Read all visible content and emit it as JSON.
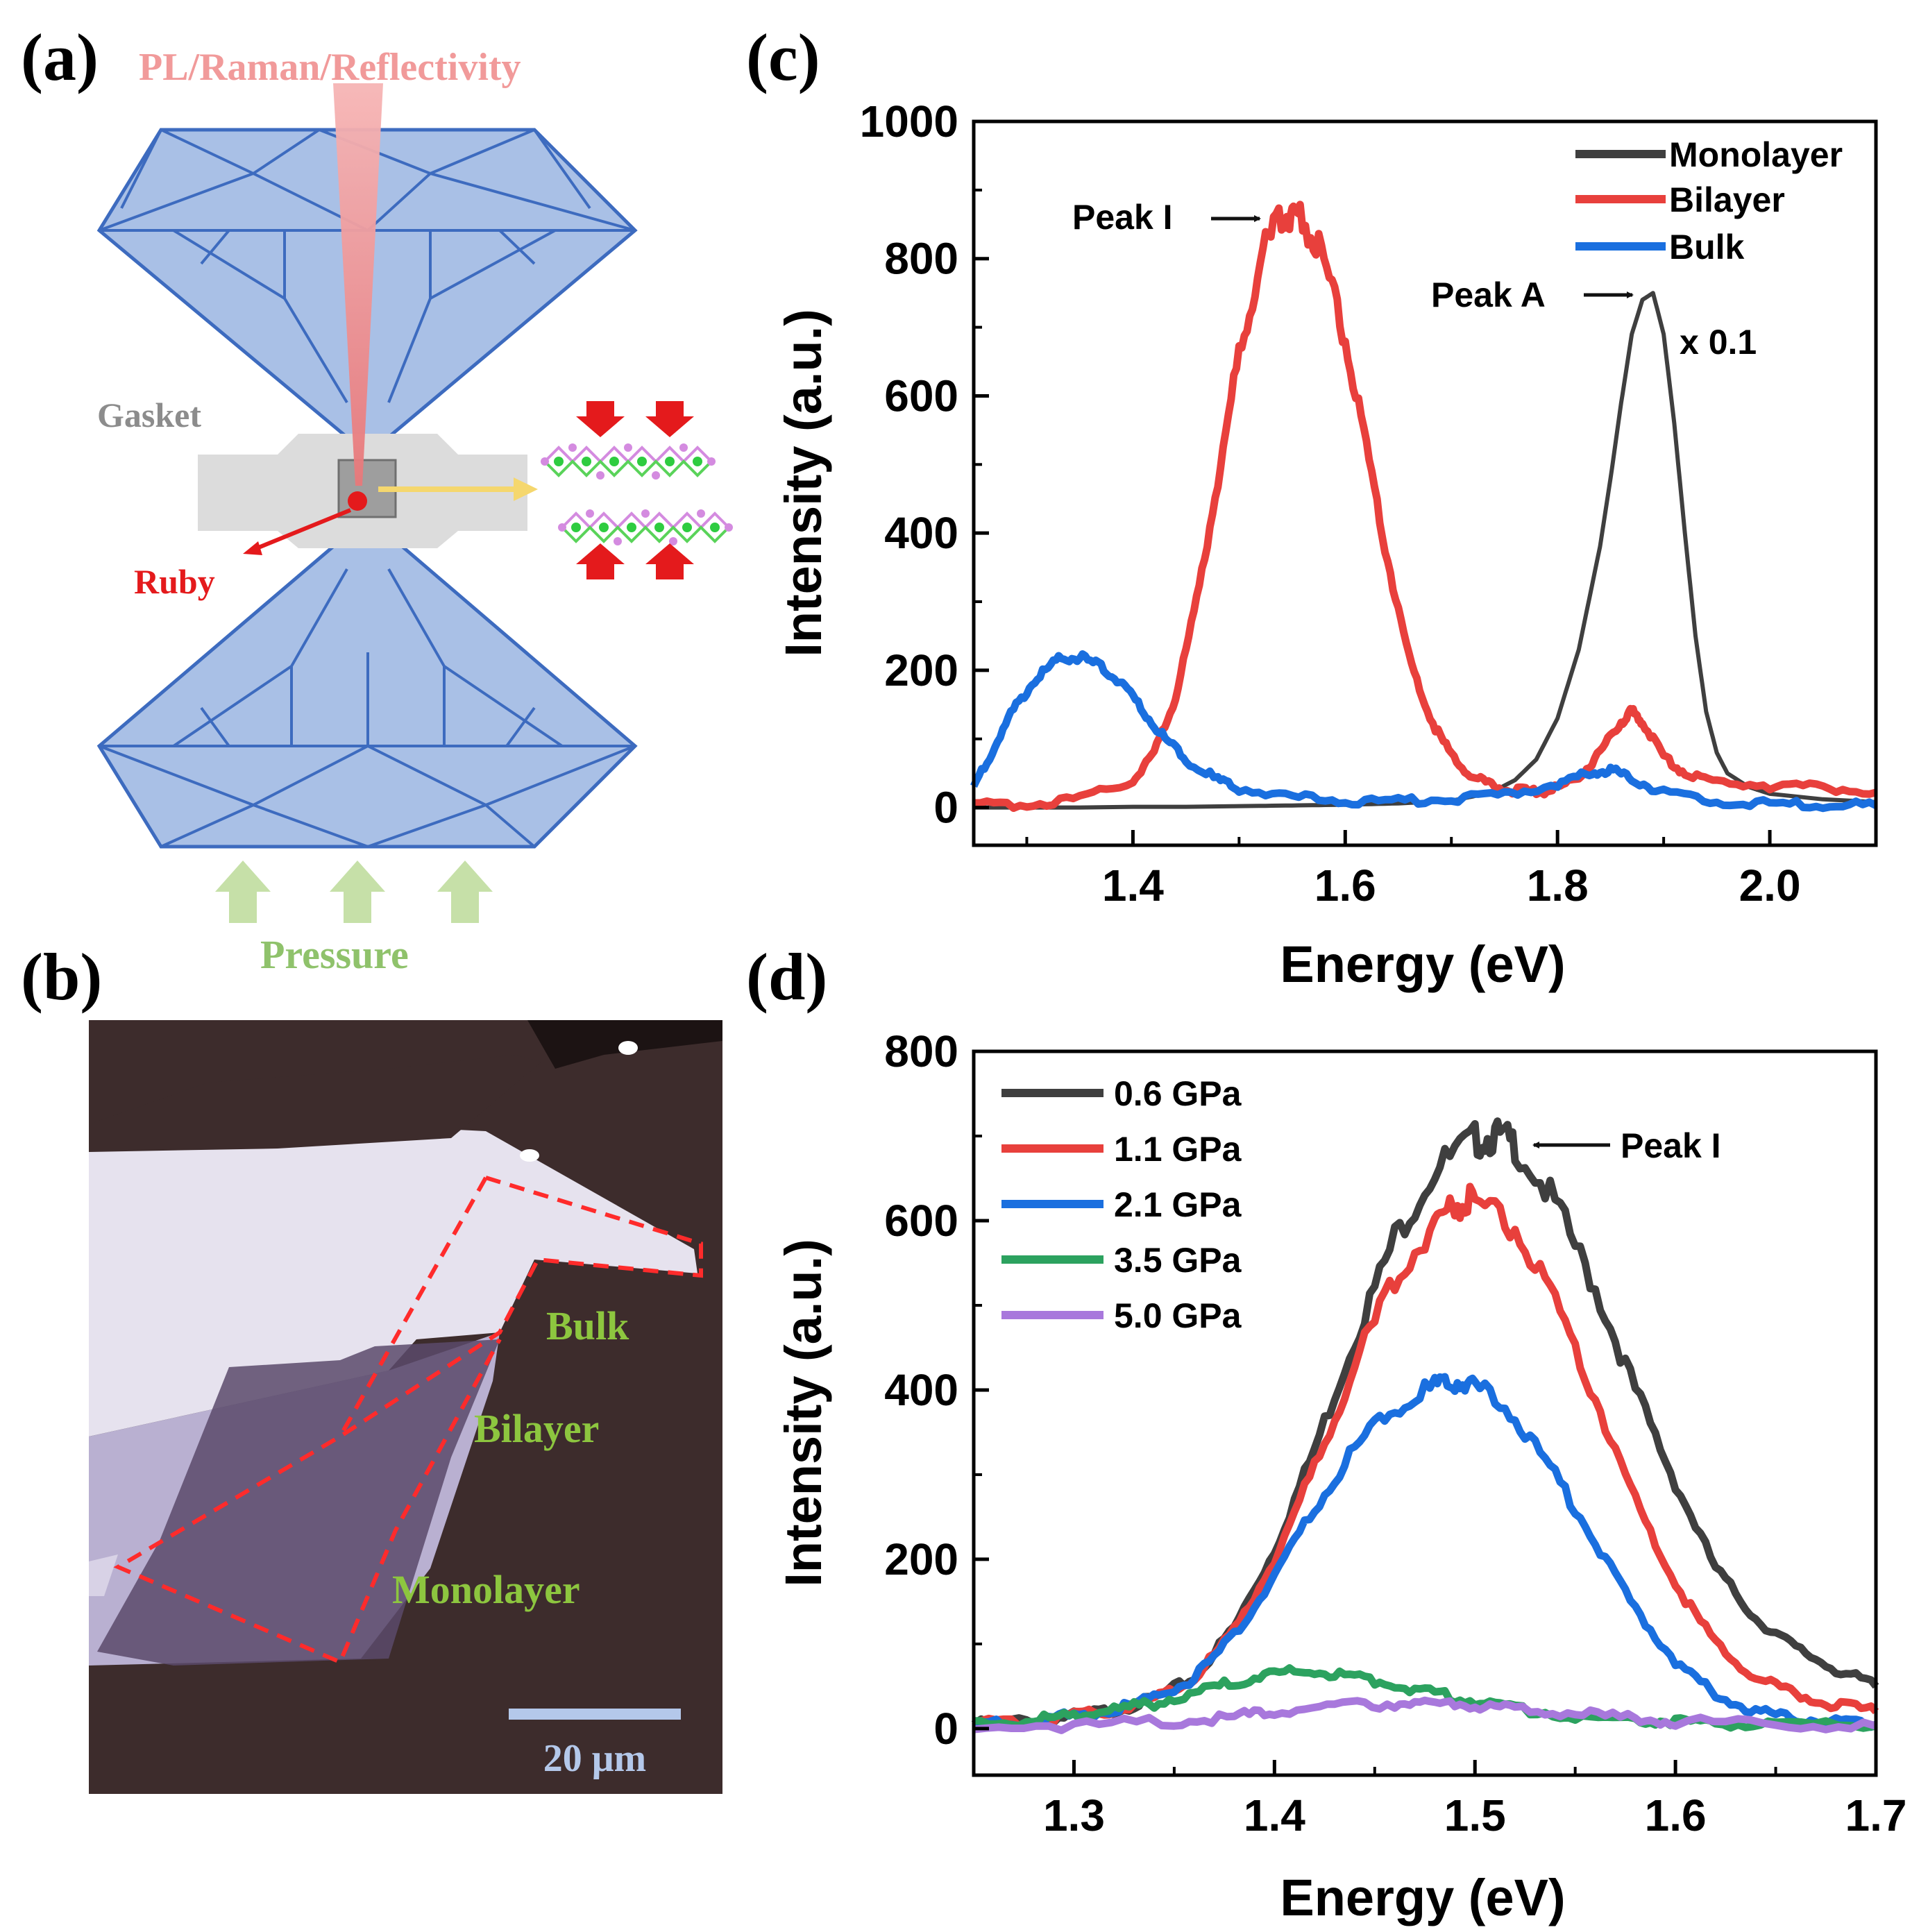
{
  "panels": {
    "a": "(a)",
    "b": "(b)",
    "c": "(c)",
    "d": "(d)"
  },
  "schematic": {
    "beam_label": "PL/Raman/Reflectivity",
    "gasket_label": "Gasket",
    "ruby_label": "Ruby",
    "pressure_label": "Pressure",
    "colors": {
      "diamond_fill": "#a9c0e6",
      "diamond_stroke": "#3d6bbf",
      "beam": "#f2a3a3",
      "gasket": "#d9d9d9",
      "ruby": "#e41a1c",
      "sample_arrow": "#f5d76e",
      "pressure_arrow": "#c6e0a8",
      "pressure_text": "#8fc26b"
    }
  },
  "micrograph": {
    "labels": {
      "bulk": "Bulk",
      "bilayer": "Bilayer",
      "monolayer": "Monolayer"
    },
    "scale_bar_label": "20 μm",
    "colors": {
      "substrate": "#3d2c2c",
      "label": "#8dc63f",
      "outline": "#ff2b2b",
      "scale_bar": "#b4c8ea"
    }
  },
  "chart_data": [
    {
      "panel": "c",
      "type": "line",
      "xlabel": "Energy (eV)",
      "ylabel": "Intensity (a.u.)",
      "xlim": [
        1.25,
        2.1
      ],
      "ylim": [
        -55,
        1000
      ],
      "xticks": [
        1.4,
        1.6,
        1.8,
        2.0
      ],
      "xtick_labels": [
        "1.4",
        "1.6",
        "1.8",
        "2.0"
      ],
      "yticks": [
        0,
        200,
        400,
        600,
        800,
        1000
      ],
      "ytick_labels": [
        "0",
        "200",
        "400",
        "600",
        "800",
        "1000"
      ],
      "legend_position": "top-right",
      "series": [
        {
          "name": "Monolayer",
          "color": "#3f3f3f",
          "x": [
            1.25,
            1.3,
            1.35,
            1.4,
            1.45,
            1.5,
            1.55,
            1.6,
            1.65,
            1.7,
            1.72,
            1.74,
            1.76,
            1.78,
            1.8,
            1.82,
            1.84,
            1.85,
            1.86,
            1.87,
            1.88,
            1.89,
            1.9,
            1.91,
            1.92,
            1.93,
            1.94,
            1.95,
            1.96,
            1.98,
            2.0,
            2.05,
            2.1
          ],
          "y": [
            0,
            0,
            0,
            1,
            1,
            2,
            3,
            4,
            6,
            10,
            16,
            24,
            40,
            70,
            130,
            230,
            380,
            480,
            590,
            690,
            740,
            750,
            690,
            560,
            400,
            250,
            140,
            80,
            50,
            30,
            20,
            12,
            8
          ]
        },
        {
          "name": "Bilayer",
          "color": "#e8403c",
          "x": [
            1.25,
            1.3,
            1.35,
            1.4,
            1.42,
            1.44,
            1.46,
            1.48,
            1.5,
            1.52,
            1.54,
            1.55,
            1.56,
            1.58,
            1.6,
            1.62,
            1.64,
            1.66,
            1.68,
            1.7,
            1.72,
            1.74,
            1.76,
            1.78,
            1.8,
            1.82,
            1.84,
            1.86,
            1.87,
            1.88,
            1.9,
            1.92,
            1.95,
            2.0,
            2.05,
            2.1
          ],
          "y": [
            3,
            5,
            12,
            40,
            80,
            160,
            300,
            480,
            660,
            800,
            862,
            870,
            860,
            800,
            680,
            520,
            360,
            220,
            130,
            75,
            45,
            30,
            25,
            22,
            28,
            45,
            80,
            125,
            140,
            125,
            75,
            50,
            38,
            32,
            30,
            22
          ]
        },
        {
          "name": "Bulk",
          "color": "#1a6fdf",
          "x": [
            1.25,
            1.27,
            1.29,
            1.31,
            1.33,
            1.35,
            1.37,
            1.39,
            1.41,
            1.43,
            1.45,
            1.48,
            1.5,
            1.55,
            1.6,
            1.65,
            1.7,
            1.75,
            1.8,
            1.83,
            1.85,
            1.87,
            1.9,
            1.95,
            2.0,
            2.05,
            2.1
          ],
          "y": [
            30,
            90,
            150,
            190,
            215,
            220,
            205,
            180,
            140,
            100,
            70,
            40,
            28,
            15,
            10,
            10,
            12,
            18,
            35,
            50,
            55,
            42,
            22,
            8,
            5,
            4,
            3
          ]
        }
      ],
      "annotations": [
        {
          "text": "Peak I",
          "x": 1.55,
          "y": 870
        },
        {
          "text": "Peak A",
          "x": 1.89,
          "y": 750
        },
        {
          "text": "x 0.1",
          "x": 1.91,
          "y": 680
        }
      ]
    },
    {
      "panel": "d",
      "type": "line",
      "xlabel": "Energy (eV)",
      "ylabel": "Intensity (a.u.)",
      "xlim": [
        1.25,
        1.7
      ],
      "ylim": [
        -55,
        800
      ],
      "xticks": [
        1.3,
        1.4,
        1.5,
        1.6,
        1.7
      ],
      "xtick_labels": [
        "1.3",
        "1.4",
        "1.5",
        "1.6",
        "1.7"
      ],
      "yticks": [
        0,
        200,
        400,
        600,
        800
      ],
      "ytick_labels": [
        "0",
        "200",
        "400",
        "600",
        "800"
      ],
      "legend_position": "top-left",
      "series": [
        {
          "name": "0.6 GPa",
          "color": "#3f3f3f",
          "x": [
            1.25,
            1.28,
            1.3,
            1.32,
            1.34,
            1.36,
            1.38,
            1.4,
            1.42,
            1.44,
            1.46,
            1.48,
            1.5,
            1.51,
            1.52,
            1.54,
            1.56,
            1.58,
            1.6,
            1.62,
            1.64,
            1.66,
            1.68,
            1.7
          ],
          "y": [
            5,
            10,
            15,
            22,
            35,
            60,
            120,
            210,
            330,
            460,
            580,
            660,
            695,
            700,
            690,
            620,
            520,
            400,
            290,
            190,
            130,
            95,
            70,
            50
          ]
        },
        {
          "name": "1.1 GPa",
          "color": "#e8403c",
          "x": [
            1.25,
            1.28,
            1.3,
            1.32,
            1.34,
            1.36,
            1.38,
            1.4,
            1.42,
            1.44,
            1.46,
            1.48,
            1.49,
            1.5,
            1.52,
            1.54,
            1.56,
            1.58,
            1.6,
            1.62,
            1.64,
            1.66,
            1.68,
            1.7
          ],
          "y": [
            5,
            10,
            15,
            22,
            35,
            60,
            115,
            200,
            310,
            430,
            530,
            600,
            620,
            625,
            590,
            500,
            390,
            270,
            170,
            100,
            60,
            40,
            28,
            20
          ]
        },
        {
          "name": "2.1 GPa",
          "color": "#1a6fdf",
          "x": [
            1.25,
            1.28,
            1.3,
            1.32,
            1.34,
            1.36,
            1.38,
            1.4,
            1.42,
            1.44,
            1.46,
            1.48,
            1.49,
            1.5,
            1.52,
            1.54,
            1.56,
            1.58,
            1.6,
            1.62,
            1.64,
            1.66,
            1.68,
            1.7
          ],
          "y": [
            5,
            10,
            15,
            22,
            35,
            60,
            110,
            180,
            260,
            330,
            380,
            405,
            410,
            405,
            370,
            300,
            220,
            140,
            80,
            40,
            20,
            12,
            8,
            5
          ]
        },
        {
          "name": "3.5 GPa",
          "color": "#2ca25f",
          "x": [
            1.25,
            1.28,
            1.3,
            1.32,
            1.34,
            1.36,
            1.38,
            1.4,
            1.42,
            1.44,
            1.46,
            1.48,
            1.5,
            1.52,
            1.55,
            1.58,
            1.6,
            1.62,
            1.65,
            1.7
          ],
          "y": [
            5,
            10,
            15,
            22,
            30,
            42,
            55,
            65,
            68,
            62,
            52,
            42,
            32,
            24,
            15,
            10,
            8,
            6,
            4,
            3
          ]
        },
        {
          "name": "5.0 GPa",
          "color": "#a878dc",
          "x": [
            1.25,
            1.3,
            1.35,
            1.38,
            1.4,
            1.43,
            1.46,
            1.48,
            1.5,
            1.52,
            1.55,
            1.58,
            1.6,
            1.65,
            1.7
          ],
          "y": [
            2,
            4,
            8,
            14,
            20,
            26,
            30,
            30,
            28,
            24,
            18,
            12,
            9,
            5,
            3
          ]
        }
      ],
      "annotations": [
        {
          "text": "Peak I",
          "x": 1.51,
          "y": 700
        }
      ]
    }
  ]
}
